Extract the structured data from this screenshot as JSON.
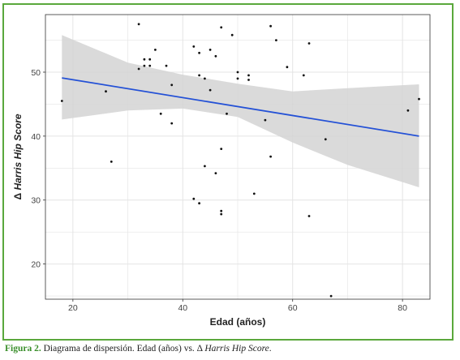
{
  "caption": {
    "label": "Figura 2.",
    "text_before": " Diagrama de dispersión. Edad (años) vs. Δ ",
    "text_italic": "Harris Hip Score",
    "text_after": "."
  },
  "colors": {
    "frame_border": "#5aa83c",
    "panel_bg": "#ffffff",
    "grid": "#e4e4e4",
    "points": "#111111",
    "fit_line": "#2451d6",
    "ci_band": "#d3d3d3",
    "caption_label": "#3b8f2c"
  },
  "chart_data": {
    "type": "scatter",
    "title": "",
    "xlabel": "Edad (años)",
    "ylabel_prefix": "Δ ",
    "ylabel_italic": "Harris Hip Score",
    "xlim": [
      15,
      85
    ],
    "ylim": [
      14.5,
      59
    ],
    "xticks": [
      20,
      40,
      60,
      80
    ],
    "yticks": [
      20,
      30,
      40,
      50
    ],
    "grid": true,
    "legend": "none",
    "points": [
      [
        18,
        45.5
      ],
      [
        26,
        47
      ],
      [
        27,
        36
      ],
      [
        32,
        57.5
      ],
      [
        32,
        50.5
      ],
      [
        33,
        52
      ],
      [
        33,
        51
      ],
      [
        34,
        52
      ],
      [
        34,
        51
      ],
      [
        35,
        53.5
      ],
      [
        36,
        43.5
      ],
      [
        37,
        51
      ],
      [
        38,
        48
      ],
      [
        38,
        42
      ],
      [
        42,
        54
      ],
      [
        42,
        30.2
      ],
      [
        43,
        53
      ],
      [
        43,
        49.5
      ],
      [
        43,
        29.5
      ],
      [
        44,
        49
      ],
      [
        44,
        35.3
      ],
      [
        45,
        53.5
      ],
      [
        45,
        47.2
      ],
      [
        46,
        52.5
      ],
      [
        46,
        34.2
      ],
      [
        47,
        57
      ],
      [
        47,
        38
      ],
      [
        47,
        28.3
      ],
      [
        47,
        27.8
      ],
      [
        48,
        43.5
      ],
      [
        49,
        55.8
      ],
      [
        50,
        50
      ],
      [
        50,
        49
      ],
      [
        52,
        49.5
      ],
      [
        52,
        48.8
      ],
      [
        53,
        31
      ],
      [
        55,
        42.5
      ],
      [
        56,
        57.2
      ],
      [
        56,
        36.8
      ],
      [
        57,
        55
      ],
      [
        59,
        50.8
      ],
      [
        62,
        49.5
      ],
      [
        63,
        54.5
      ],
      [
        63,
        27.5
      ],
      [
        66,
        39.5
      ],
      [
        67,
        15
      ],
      [
        81,
        44
      ],
      [
        83,
        45.8
      ]
    ],
    "fit_line": {
      "x": [
        18,
        83
      ],
      "y": [
        49.1,
        40.0
      ]
    },
    "confidence_band": {
      "x": [
        18,
        30,
        40,
        50,
        60,
        70,
        83
      ],
      "upper": [
        55.8,
        51.5,
        49.6,
        48.2,
        47.0,
        47.5,
        48.1
      ],
      "lower": [
        42.6,
        44.0,
        44.3,
        43.0,
        39.0,
        35.5,
        32.0
      ]
    }
  }
}
